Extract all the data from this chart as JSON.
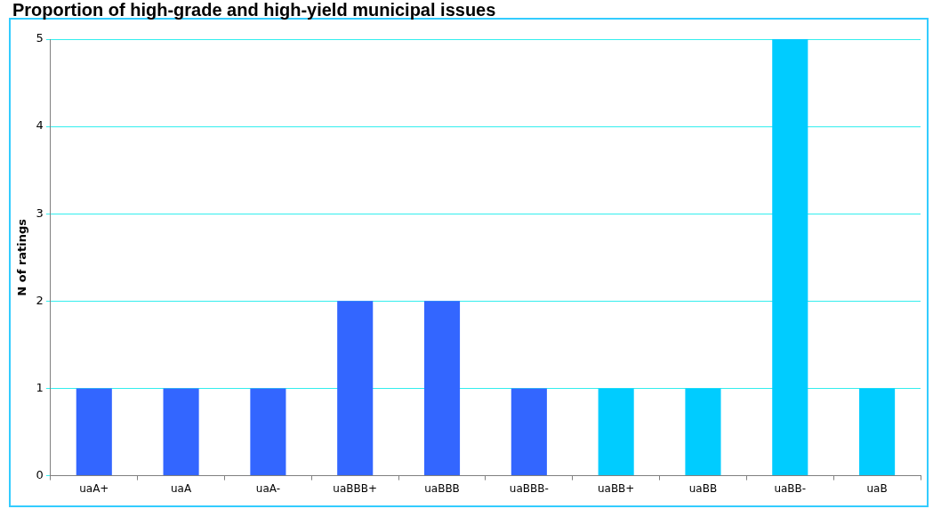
{
  "chart_data": {
    "type": "bar",
    "title": "Proportion of high-grade and high-yield municipal issues",
    "ylabel": "N of ratings",
    "categories": [
      "uaA+",
      "uaA",
      "uaA-",
      "uaBBB+",
      "uaBBB",
      "uaBBB-",
      "uaBB+",
      "uaBB",
      "uaBB-",
      "uaB"
    ],
    "values": [
      1,
      1,
      1,
      2,
      2,
      1,
      1,
      1,
      5,
      1
    ],
    "colors": [
      "#3366ff",
      "#3366ff",
      "#3366ff",
      "#3366ff",
      "#3366ff",
      "#3366ff",
      "#00ccff",
      "#00ccff",
      "#00ccff",
      "#00ccff"
    ],
    "ylim": [
      0,
      5
    ],
    "yticks": [
      0,
      1,
      2,
      3,
      4,
      5
    ],
    "grid": "y",
    "legend": false
  }
}
